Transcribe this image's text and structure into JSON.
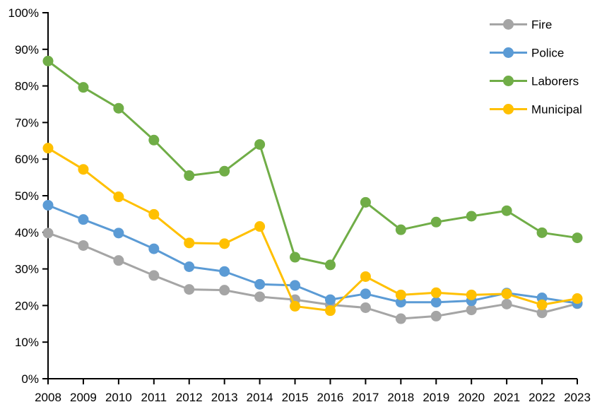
{
  "chart_data": {
    "type": "line",
    "title": "",
    "xlabel": "",
    "ylabel": "",
    "grid": false,
    "background": "#FFFFFF",
    "axis_color": "#000000",
    "legend_position": "top-right",
    "ylim": [
      0,
      100
    ],
    "y_tick_step": 10,
    "y_tick_labels": [
      "0%",
      "10%",
      "20%",
      "30%",
      "40%",
      "50%",
      "60%",
      "70%",
      "80%",
      "90%",
      "100%"
    ],
    "categories": [
      "2008",
      "2009",
      "2010",
      "2011",
      "2012",
      "2013",
      "2014",
      "2015",
      "2016",
      "2017",
      "2018",
      "2019",
      "2020",
      "2021",
      "2022",
      "2023"
    ],
    "series": [
      {
        "name": "Fire",
        "color": "#A5A5A5",
        "values": [
          39.8,
          36.4,
          32.3,
          28.2,
          24.4,
          24.2,
          22.4,
          21.6,
          20.2,
          19.4,
          16.4,
          17.1,
          18.8,
          20.4,
          18.0,
          20.5
        ]
      },
      {
        "name": "Police",
        "color": "#5B9BD5",
        "values": [
          47.4,
          43.5,
          39.8,
          35.5,
          30.6,
          29.3,
          25.8,
          25.5,
          21.6,
          23.2,
          20.9,
          20.9,
          21.3,
          23.4,
          22.1,
          20.6
        ]
      },
      {
        "name": "Laborers",
        "color": "#70AD47",
        "values": [
          86.8,
          79.6,
          73.9,
          65.2,
          55.5,
          56.7,
          64.0,
          33.2,
          31.1,
          48.2,
          40.7,
          42.8,
          44.4,
          45.9,
          39.9,
          38.5
        ]
      },
      {
        "name": "Municipal",
        "color": "#FFC000",
        "values": [
          63.0,
          57.2,
          49.7,
          44.9,
          37.1,
          36.9,
          41.6,
          19.8,
          18.6,
          27.9,
          22.9,
          23.5,
          22.9,
          23.2,
          20.2,
          21.9
        ]
      }
    ]
  }
}
